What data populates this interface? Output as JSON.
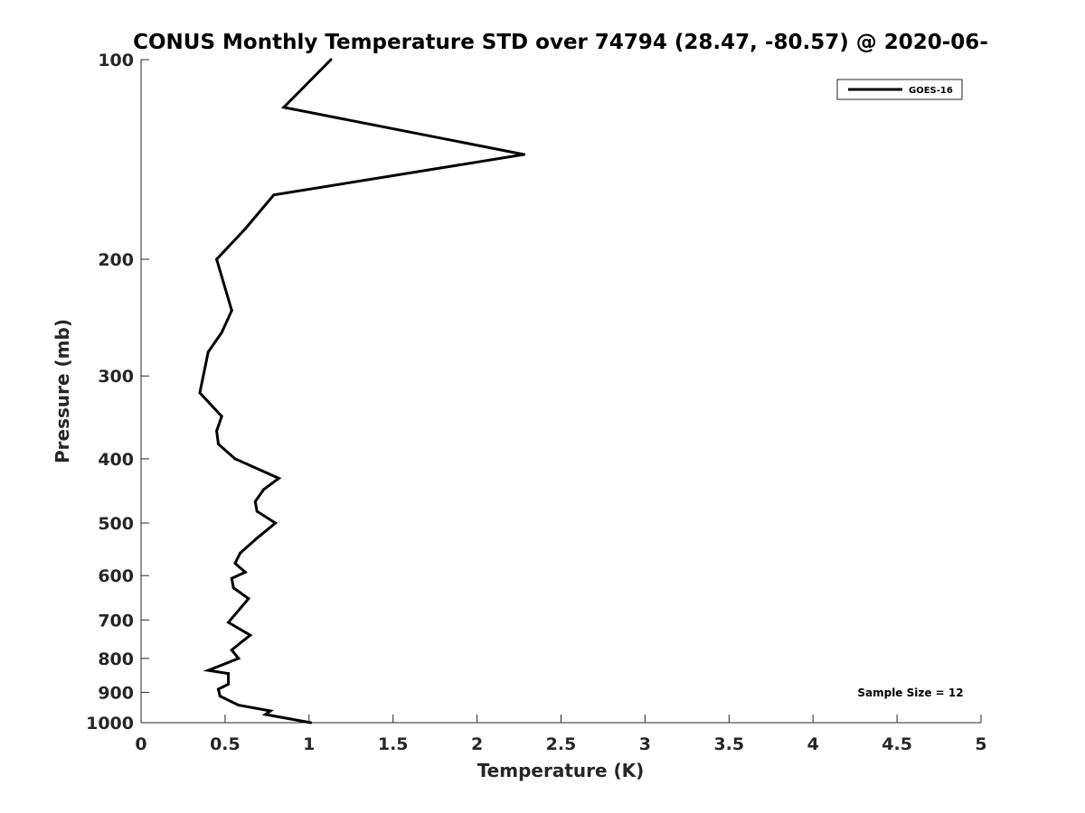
{
  "chart_data": {
    "type": "line",
    "title": "CONUS Monthly Temperature STD over 74794 (28.47, -80.57) @ 2020-06-",
    "xlabel": "Temperature (K)",
    "ylabel": "Pressure (mb)",
    "xlim": [
      0,
      5
    ],
    "ylim": [
      100,
      1000
    ],
    "y_scale": "log",
    "y_reversed": true,
    "x_ticks": [
      0,
      0.5,
      1,
      1.5,
      2,
      2.5,
      3,
      3.5,
      4,
      4.5,
      5
    ],
    "x_tick_labels": [
      "0",
      "0.5",
      "1",
      "1.5",
      "2",
      "2.5",
      "3",
      "3.5",
      "4",
      "4.5",
      "5"
    ],
    "y_ticks": [
      100,
      200,
      300,
      400,
      500,
      600,
      700,
      800,
      900,
      1000
    ],
    "y_tick_labels": [
      "100",
      "200",
      "300",
      "400",
      "500",
      "600",
      "700",
      "800",
      "900",
      "1000"
    ],
    "grid": false,
    "legend_position": "top-right",
    "annotation": "Sample Size = 12",
    "series": [
      {
        "name": "GOES-16",
        "color": "#000000",
        "points": [
          {
            "x": 1.13,
            "y": 100
          },
          {
            "x": 0.85,
            "y": 118
          },
          {
            "x": 2.28,
            "y": 139
          },
          {
            "x": 0.79,
            "y": 160
          },
          {
            "x": 0.62,
            "y": 180
          },
          {
            "x": 0.45,
            "y": 200
          },
          {
            "x": 0.54,
            "y": 239
          },
          {
            "x": 0.48,
            "y": 258
          },
          {
            "x": 0.4,
            "y": 276
          },
          {
            "x": 0.35,
            "y": 318
          },
          {
            "x": 0.48,
            "y": 345
          },
          {
            "x": 0.45,
            "y": 363
          },
          {
            "x": 0.46,
            "y": 380
          },
          {
            "x": 0.56,
            "y": 400
          },
          {
            "x": 0.82,
            "y": 428
          },
          {
            "x": 0.73,
            "y": 445
          },
          {
            "x": 0.68,
            "y": 464
          },
          {
            "x": 0.69,
            "y": 480
          },
          {
            "x": 0.8,
            "y": 500
          },
          {
            "x": 0.69,
            "y": 527
          },
          {
            "x": 0.59,
            "y": 555
          },
          {
            "x": 0.56,
            "y": 575
          },
          {
            "x": 0.62,
            "y": 593
          },
          {
            "x": 0.54,
            "y": 606
          },
          {
            "x": 0.55,
            "y": 626
          },
          {
            "x": 0.64,
            "y": 650
          },
          {
            "x": 0.52,
            "y": 706
          },
          {
            "x": 0.65,
            "y": 738
          },
          {
            "x": 0.6,
            "y": 755
          },
          {
            "x": 0.54,
            "y": 777
          },
          {
            "x": 0.58,
            "y": 800
          },
          {
            "x": 0.4,
            "y": 834
          },
          {
            "x": 0.52,
            "y": 843
          },
          {
            "x": 0.52,
            "y": 875
          },
          {
            "x": 0.46,
            "y": 890
          },
          {
            "x": 0.47,
            "y": 912
          },
          {
            "x": 0.58,
            "y": 941
          },
          {
            "x": 0.77,
            "y": 960
          },
          {
            "x": 0.74,
            "y": 972
          },
          {
            "x": 1.01,
            "y": 1000
          }
        ]
      }
    ]
  }
}
